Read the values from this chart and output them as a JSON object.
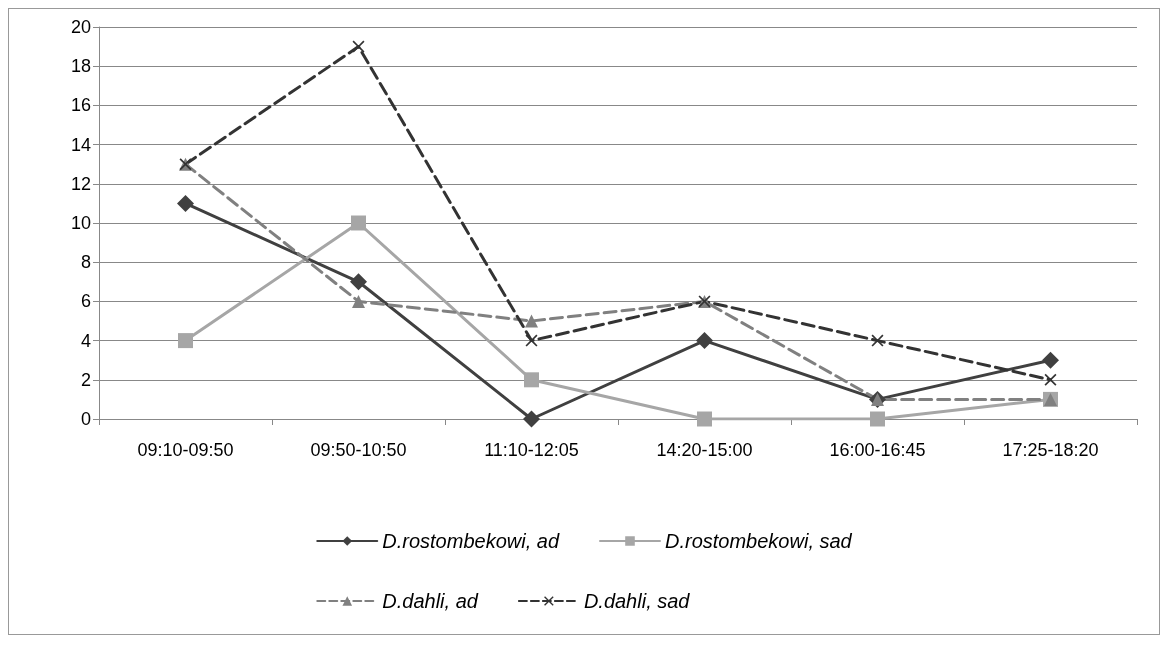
{
  "chart_data": {
    "type": "line",
    "categories": [
      "09:10-09:50",
      "09:50-10:50",
      "11:10-12:05",
      "14:20-15:00",
      "16:00-16:45",
      "17:25-18:20"
    ],
    "series": [
      {
        "name": "D.rostombekowi, ad",
        "color": "#404040",
        "marker": "diamond",
        "line_style": "solid",
        "values": [
          11,
          7,
          0,
          4,
          1,
          3
        ]
      },
      {
        "name": "D.rostombekowi, sad",
        "color": "#a6a6a6",
        "marker": "square",
        "line_style": "solid",
        "values": [
          4,
          10,
          2,
          0,
          0,
          1
        ]
      },
      {
        "name": "D.dahli, ad",
        "color": "#808080",
        "marker": "triangle",
        "line_style": "dashed",
        "values": [
          13,
          6,
          5,
          6,
          1,
          1
        ]
      },
      {
        "name": "D.dahli, sad",
        "color": "#333333",
        "marker": "cross",
        "line_style": "dashed",
        "values": [
          13,
          19,
          4,
          6,
          4,
          2
        ]
      }
    ],
    "ylim": [
      0,
      20
    ],
    "yticks": [
      0,
      2,
      4,
      6,
      8,
      10,
      12,
      14,
      16,
      18,
      20
    ],
    "grid": "y",
    "legend": "bottom"
  }
}
